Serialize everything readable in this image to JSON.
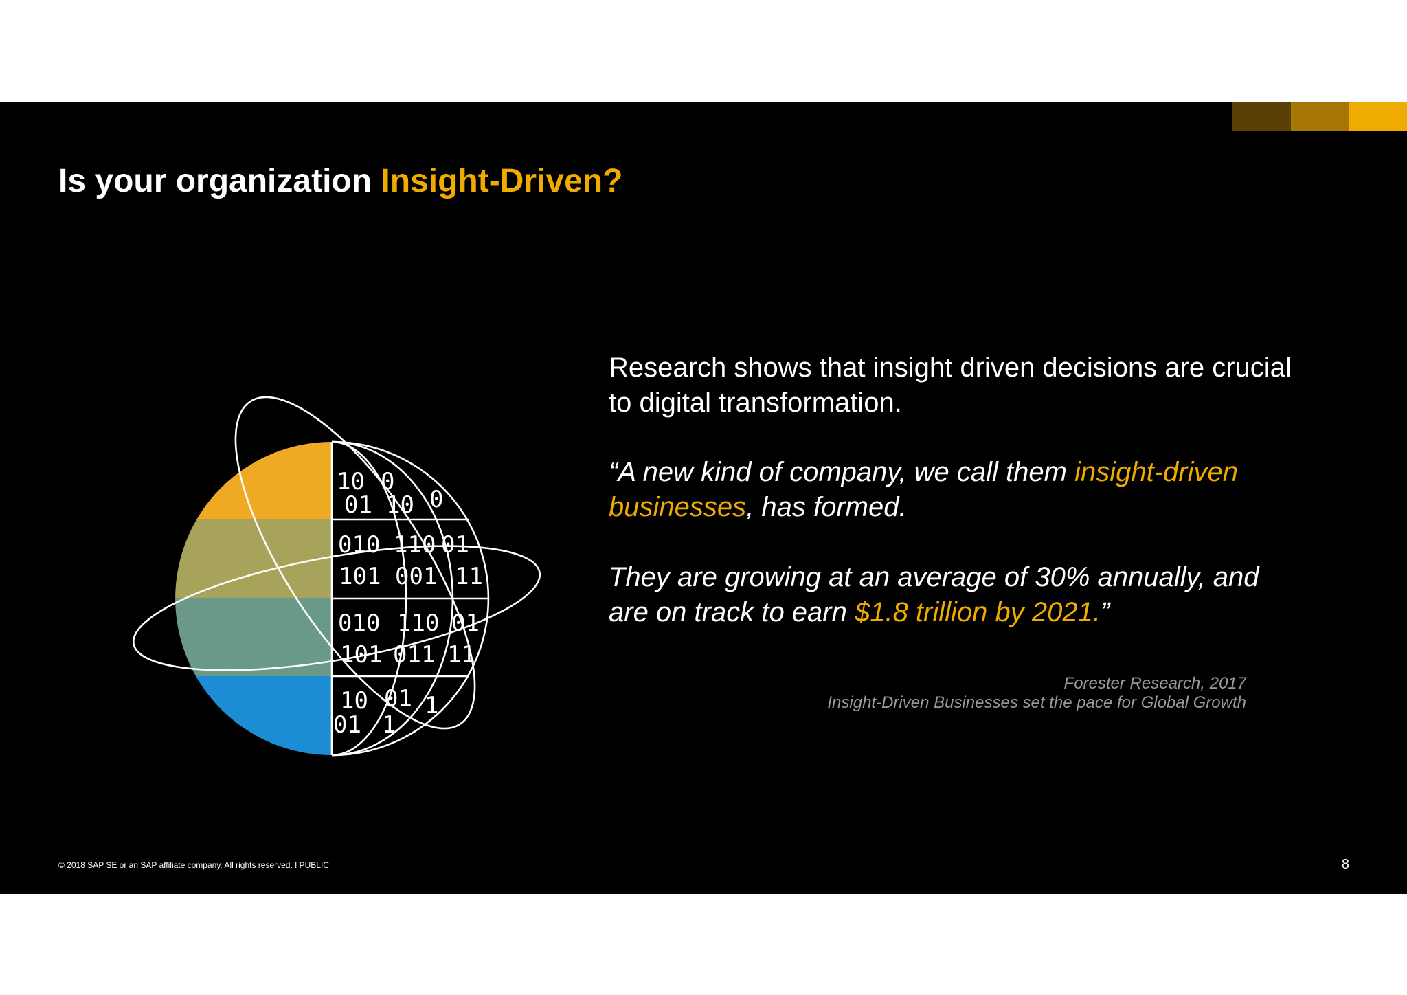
{
  "colors": {
    "background": "#000000",
    "highlight": "#F0AB00",
    "accent_bar": [
      "#5A3F06",
      "#A67706",
      "#F0AB00"
    ],
    "globe_bands": [
      "#EEAA22",
      "#A8A35A",
      "#6A9A87",
      "#1C8DD4"
    ]
  },
  "title": {
    "prefix": "Is your organization ",
    "highlight": "Insight-Driven?"
  },
  "globe": {
    "icon": "data-globe-icon",
    "binary_rows": [
      [
        "10",
        "0"
      ],
      [
        "01",
        "10",
        "0"
      ],
      [
        "010",
        "110",
        "01"
      ],
      [
        "101",
        "001",
        "11"
      ],
      [
        "010",
        "110",
        "01"
      ],
      [
        "101",
        "011",
        "11"
      ],
      [
        "10",
        "01",
        "1"
      ],
      [
        "01",
        "1"
      ]
    ]
  },
  "content": {
    "research": "Research shows that insight driven decisions are crucial to digital transformation.",
    "quote1_a": "“A new kind of company, we call them ",
    "quote1_b": "insight-driven businesses",
    "quote1_c": ", has formed.",
    "quote2_a": "They are growing at an average of 30% annually, and are on track to earn ",
    "quote2_b": "$1.8 trillion by 2021.",
    "quote2_c": "”"
  },
  "source": {
    "line1": "Forester Research, 2017",
    "line2": "Insight-Driven Businesses set the pace for Global Growth"
  },
  "footer": {
    "copyright": "© 2018 SAP SE or an SAP affiliate company. All rights reserved.   ǀ   PUBLIC",
    "page": "8"
  }
}
